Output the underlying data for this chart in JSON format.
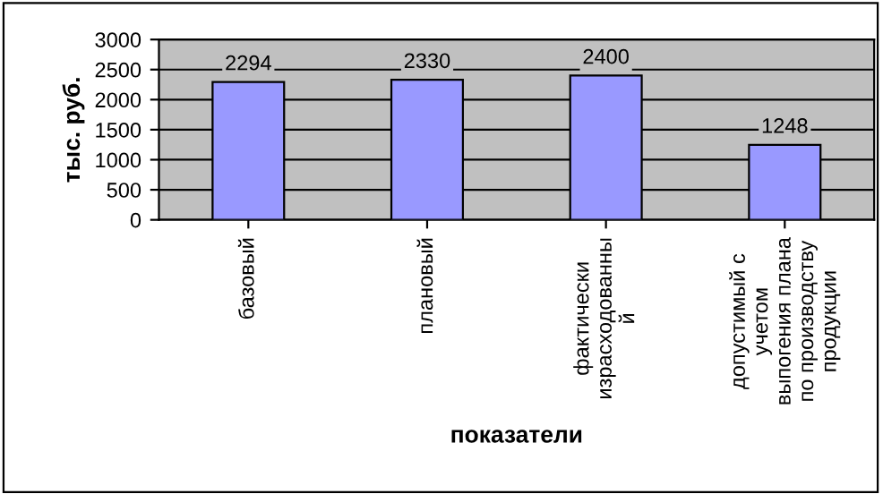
{
  "chart_data": {
    "type": "bar",
    "ylabel": "тыс. руб.",
    "xlabel": "показатели",
    "categories": [
      "базовый",
      "плановый",
      "фактически\nизрасходованны\nй",
      "допустимый с\nучетом\nвыпогения плана\nпо производству\nпродукции"
    ],
    "values": [
      2294,
      2330,
      2400,
      1248
    ],
    "color": "#9999ff",
    "ylim": [
      0,
      3000
    ],
    "yticks": [
      0,
      500,
      1000,
      1500,
      2000,
      2500,
      3000
    ],
    "grid": "y",
    "data_labels": true,
    "legend": false
  }
}
